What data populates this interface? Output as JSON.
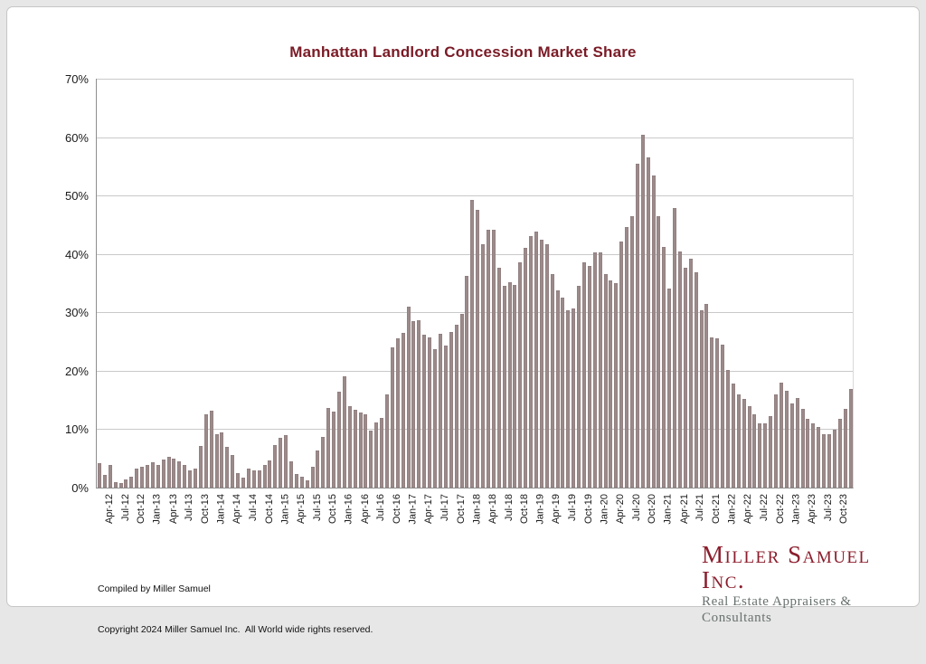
{
  "title": "Manhattan Landlord Concession Market Share",
  "title_color": "#7a1b26",
  "footer": {
    "line1": "Compiled by Miller Samuel",
    "line2": "Copyright 2024 Miller Samuel Inc.  All World wide rights reserved."
  },
  "logo": {
    "name": "Miller Samuel Inc.",
    "name_color": "#8b1e2d",
    "tagline": "Real Estate Appraisers & Consultants",
    "tagline_color": "#68716f"
  },
  "chart_data": {
    "type": "bar",
    "title": "Manhattan Landlord Concession Market Share",
    "xlabel": "",
    "ylabel": "",
    "ylim": [
      0,
      70
    ],
    "ytick_step": 10,
    "yticks": [
      "0%",
      "10%",
      "20%",
      "30%",
      "40%",
      "50%",
      "60%",
      "70%"
    ],
    "xtick_every": 3,
    "last_labeled_x": "Oct-23",
    "grid": "horizontal",
    "legend_position": "none",
    "bar_color": "#9c8a8b",
    "grid_color": "#c9c9c9",
    "axis_color": "#8e8e8e",
    "x": [
      "Apr-12",
      "May-12",
      "Jun-12",
      "Jul-12",
      "Aug-12",
      "Sep-12",
      "Oct-12",
      "Nov-12",
      "Dec-12",
      "Jan-13",
      "Feb-13",
      "Mar-13",
      "Apr-13",
      "May-13",
      "Jun-13",
      "Jul-13",
      "Aug-13",
      "Sep-13",
      "Oct-13",
      "Nov-13",
      "Dec-13",
      "Jan-14",
      "Feb-14",
      "Mar-14",
      "Apr-14",
      "May-14",
      "Jun-14",
      "Jul-14",
      "Aug-14",
      "Sep-14",
      "Oct-14",
      "Nov-14",
      "Dec-14",
      "Jan-15",
      "Feb-15",
      "Mar-15",
      "Apr-15",
      "May-15",
      "Jun-15",
      "Jul-15",
      "Aug-15",
      "Sep-15",
      "Oct-15",
      "Nov-15",
      "Dec-15",
      "Jan-16",
      "Feb-16",
      "Mar-16",
      "Apr-16",
      "May-16",
      "Jun-16",
      "Jul-16",
      "Aug-16",
      "Sep-16",
      "Oct-16",
      "Nov-16",
      "Dec-16",
      "Jan-17",
      "Feb-17",
      "Mar-17",
      "Apr-17",
      "May-17",
      "Jun-17",
      "Jul-17",
      "Aug-17",
      "Sep-17",
      "Oct-17",
      "Nov-17",
      "Dec-17",
      "Jan-18",
      "Feb-18",
      "Mar-18",
      "Apr-18",
      "May-18",
      "Jun-18",
      "Jul-18",
      "Aug-18",
      "Sep-18",
      "Oct-18",
      "Nov-18",
      "Dec-18",
      "Jan-19",
      "Feb-19",
      "Mar-19",
      "Apr-19",
      "May-19",
      "Jun-19",
      "Jul-19",
      "Aug-19",
      "Sep-19",
      "Oct-19",
      "Nov-19",
      "Dec-19",
      "Jan-20",
      "Feb-20",
      "Mar-20",
      "Apr-20",
      "May-20",
      "Jun-20",
      "Jul-20",
      "Aug-20",
      "Sep-20",
      "Oct-20",
      "Nov-20",
      "Dec-20",
      "Jan-21",
      "Feb-21",
      "Mar-21",
      "Apr-21",
      "May-21",
      "Jun-21",
      "Jul-21",
      "Aug-21",
      "Sep-21",
      "Oct-21",
      "Nov-21",
      "Dec-21",
      "Jan-22",
      "Feb-22",
      "Mar-22",
      "Apr-22",
      "May-22",
      "Jun-22",
      "Jul-22",
      "Aug-22",
      "Sep-22",
      "Oct-22",
      "Nov-22",
      "Dec-22",
      "Jan-23",
      "Feb-23",
      "Mar-23",
      "Apr-23",
      "May-23",
      "Jun-23",
      "Jul-23",
      "Aug-23",
      "Sep-23",
      "Oct-23",
      "Nov-23",
      "Dec-23",
      "Jan-24"
    ],
    "values": [
      4.2,
      2.1,
      3.9,
      1.0,
      0.8,
      1.4,
      1.9,
      3.2,
      3.6,
      3.9,
      4.3,
      3.8,
      4.8,
      5.3,
      4.9,
      4.5,
      3.9,
      2.9,
      3.2,
      7.1,
      12.6,
      13.1,
      9.1,
      9.4,
      6.9,
      5.6,
      2.5,
      1.7,
      3.2,
      3.0,
      2.9,
      3.9,
      4.7,
      7.3,
      8.5,
      9.0,
      4.5,
      2.3,
      1.9,
      1.2,
      3.5,
      6.3,
      8.7,
      13.6,
      13.0,
      16.4,
      19.0,
      14.0,
      13.3,
      12.9,
      12.6,
      9.7,
      11.2,
      12.0,
      16.0,
      24.0,
      25.5,
      26.5,
      31.0,
      28.5,
      28.7,
      26.2,
      25.7,
      23.7,
      26.4,
      24.3,
      26.7,
      27.9,
      29.8,
      36.3,
      49.3,
      47.6,
      41.7,
      44.2,
      44.2,
      37.7,
      34.5,
      35.2,
      34.7,
      38.5,
      41.0,
      43.0,
      43.9,
      42.5,
      41.6,
      36.6,
      33.7,
      32.5,
      30.4,
      30.7,
      34.5,
      38.5,
      37.9,
      40.3,
      40.2,
      36.5,
      35.5,
      35.0,
      42.1,
      44.6,
      46.5,
      55.4,
      60.4,
      56.6,
      53.4,
      46.4,
      41.2,
      34.0,
      47.9,
      40.5,
      37.6,
      39.2,
      36.8,
      30.4,
      31.4,
      25.7,
      25.5,
      24.5,
      20.1,
      17.8,
      15.9,
      15.2,
      13.9,
      12.6,
      11.0,
      11.0,
      12.3,
      15.9,
      17.9,
      16.5,
      14.4,
      15.3,
      13.4,
      11.8,
      11.0,
      10.4,
      9.1,
      9.1,
      9.9,
      11.8,
      13.5,
      16.9
    ]
  }
}
